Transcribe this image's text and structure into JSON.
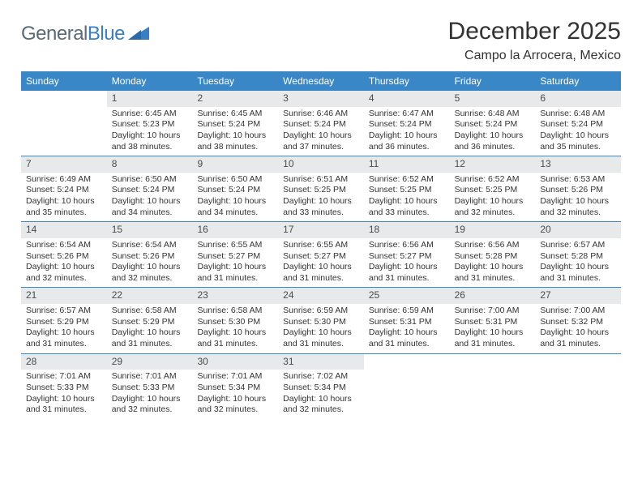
{
  "logo": {
    "part1": "General",
    "part2": "Blue"
  },
  "title": "December 2025",
  "location": "Campo la Arrocera, Mexico",
  "colors": {
    "header_bg": "#3a87c7",
    "header_text": "#ffffff",
    "date_bg": "#e7e9eb",
    "row_rule": "#3a87c7",
    "logo_gray": "#5a6a78",
    "logo_blue": "#3a7fc4"
  },
  "day_headers": [
    "Sunday",
    "Monday",
    "Tuesday",
    "Wednesday",
    "Thursday",
    "Friday",
    "Saturday"
  ],
  "weeks": [
    [
      {
        "date": "",
        "sunrise": "",
        "sunset": "",
        "daylight": ""
      },
      {
        "date": "1",
        "sunrise": "Sunrise: 6:45 AM",
        "sunset": "Sunset: 5:23 PM",
        "daylight": "Daylight: 10 hours and 38 minutes."
      },
      {
        "date": "2",
        "sunrise": "Sunrise: 6:45 AM",
        "sunset": "Sunset: 5:24 PM",
        "daylight": "Daylight: 10 hours and 38 minutes."
      },
      {
        "date": "3",
        "sunrise": "Sunrise: 6:46 AM",
        "sunset": "Sunset: 5:24 PM",
        "daylight": "Daylight: 10 hours and 37 minutes."
      },
      {
        "date": "4",
        "sunrise": "Sunrise: 6:47 AM",
        "sunset": "Sunset: 5:24 PM",
        "daylight": "Daylight: 10 hours and 36 minutes."
      },
      {
        "date": "5",
        "sunrise": "Sunrise: 6:48 AM",
        "sunset": "Sunset: 5:24 PM",
        "daylight": "Daylight: 10 hours and 36 minutes."
      },
      {
        "date": "6",
        "sunrise": "Sunrise: 6:48 AM",
        "sunset": "Sunset: 5:24 PM",
        "daylight": "Daylight: 10 hours and 35 minutes."
      }
    ],
    [
      {
        "date": "7",
        "sunrise": "Sunrise: 6:49 AM",
        "sunset": "Sunset: 5:24 PM",
        "daylight": "Daylight: 10 hours and 35 minutes."
      },
      {
        "date": "8",
        "sunrise": "Sunrise: 6:50 AM",
        "sunset": "Sunset: 5:24 PM",
        "daylight": "Daylight: 10 hours and 34 minutes."
      },
      {
        "date": "9",
        "sunrise": "Sunrise: 6:50 AM",
        "sunset": "Sunset: 5:24 PM",
        "daylight": "Daylight: 10 hours and 34 minutes."
      },
      {
        "date": "10",
        "sunrise": "Sunrise: 6:51 AM",
        "sunset": "Sunset: 5:25 PM",
        "daylight": "Daylight: 10 hours and 33 minutes."
      },
      {
        "date": "11",
        "sunrise": "Sunrise: 6:52 AM",
        "sunset": "Sunset: 5:25 PM",
        "daylight": "Daylight: 10 hours and 33 minutes."
      },
      {
        "date": "12",
        "sunrise": "Sunrise: 6:52 AM",
        "sunset": "Sunset: 5:25 PM",
        "daylight": "Daylight: 10 hours and 32 minutes."
      },
      {
        "date": "13",
        "sunrise": "Sunrise: 6:53 AM",
        "sunset": "Sunset: 5:26 PM",
        "daylight": "Daylight: 10 hours and 32 minutes."
      }
    ],
    [
      {
        "date": "14",
        "sunrise": "Sunrise: 6:54 AM",
        "sunset": "Sunset: 5:26 PM",
        "daylight": "Daylight: 10 hours and 32 minutes."
      },
      {
        "date": "15",
        "sunrise": "Sunrise: 6:54 AM",
        "sunset": "Sunset: 5:26 PM",
        "daylight": "Daylight: 10 hours and 32 minutes."
      },
      {
        "date": "16",
        "sunrise": "Sunrise: 6:55 AM",
        "sunset": "Sunset: 5:27 PM",
        "daylight": "Daylight: 10 hours and 31 minutes."
      },
      {
        "date": "17",
        "sunrise": "Sunrise: 6:55 AM",
        "sunset": "Sunset: 5:27 PM",
        "daylight": "Daylight: 10 hours and 31 minutes."
      },
      {
        "date": "18",
        "sunrise": "Sunrise: 6:56 AM",
        "sunset": "Sunset: 5:27 PM",
        "daylight": "Daylight: 10 hours and 31 minutes."
      },
      {
        "date": "19",
        "sunrise": "Sunrise: 6:56 AM",
        "sunset": "Sunset: 5:28 PM",
        "daylight": "Daylight: 10 hours and 31 minutes."
      },
      {
        "date": "20",
        "sunrise": "Sunrise: 6:57 AM",
        "sunset": "Sunset: 5:28 PM",
        "daylight": "Daylight: 10 hours and 31 minutes."
      }
    ],
    [
      {
        "date": "21",
        "sunrise": "Sunrise: 6:57 AM",
        "sunset": "Sunset: 5:29 PM",
        "daylight": "Daylight: 10 hours and 31 minutes."
      },
      {
        "date": "22",
        "sunrise": "Sunrise: 6:58 AM",
        "sunset": "Sunset: 5:29 PM",
        "daylight": "Daylight: 10 hours and 31 minutes."
      },
      {
        "date": "23",
        "sunrise": "Sunrise: 6:58 AM",
        "sunset": "Sunset: 5:30 PM",
        "daylight": "Daylight: 10 hours and 31 minutes."
      },
      {
        "date": "24",
        "sunrise": "Sunrise: 6:59 AM",
        "sunset": "Sunset: 5:30 PM",
        "daylight": "Daylight: 10 hours and 31 minutes."
      },
      {
        "date": "25",
        "sunrise": "Sunrise: 6:59 AM",
        "sunset": "Sunset: 5:31 PM",
        "daylight": "Daylight: 10 hours and 31 minutes."
      },
      {
        "date": "26",
        "sunrise": "Sunrise: 7:00 AM",
        "sunset": "Sunset: 5:31 PM",
        "daylight": "Daylight: 10 hours and 31 minutes."
      },
      {
        "date": "27",
        "sunrise": "Sunrise: 7:00 AM",
        "sunset": "Sunset: 5:32 PM",
        "daylight": "Daylight: 10 hours and 31 minutes."
      }
    ],
    [
      {
        "date": "28",
        "sunrise": "Sunrise: 7:01 AM",
        "sunset": "Sunset: 5:33 PM",
        "daylight": "Daylight: 10 hours and 31 minutes."
      },
      {
        "date": "29",
        "sunrise": "Sunrise: 7:01 AM",
        "sunset": "Sunset: 5:33 PM",
        "daylight": "Daylight: 10 hours and 32 minutes."
      },
      {
        "date": "30",
        "sunrise": "Sunrise: 7:01 AM",
        "sunset": "Sunset: 5:34 PM",
        "daylight": "Daylight: 10 hours and 32 minutes."
      },
      {
        "date": "31",
        "sunrise": "Sunrise: 7:02 AM",
        "sunset": "Sunset: 5:34 PM",
        "daylight": "Daylight: 10 hours and 32 minutes."
      },
      {
        "date": "",
        "sunrise": "",
        "sunset": "",
        "daylight": ""
      },
      {
        "date": "",
        "sunrise": "",
        "sunset": "",
        "daylight": ""
      },
      {
        "date": "",
        "sunrise": "",
        "sunset": "",
        "daylight": ""
      }
    ]
  ]
}
